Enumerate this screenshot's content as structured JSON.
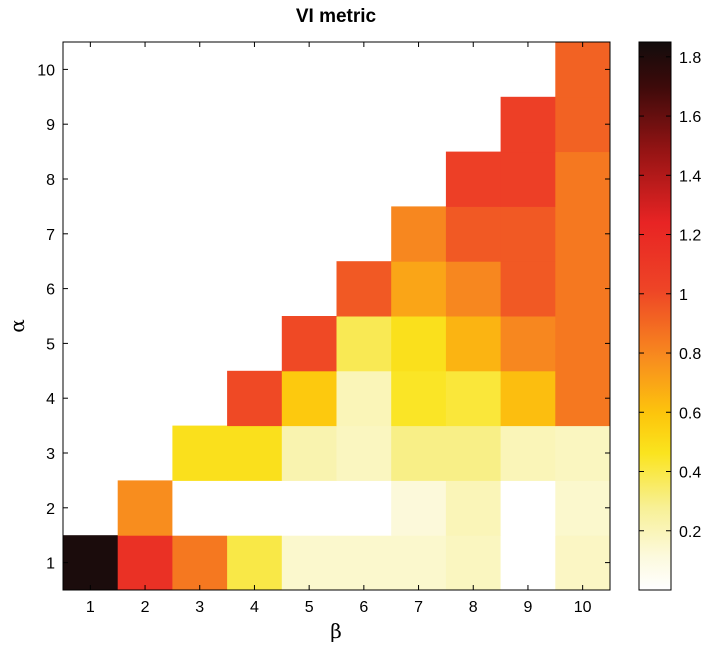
{
  "chart_data": {
    "type": "heatmap",
    "title": "VI metric",
    "xlabel": "β",
    "ylabel": "α",
    "x": [
      1,
      2,
      3,
      4,
      5,
      6,
      7,
      8,
      9,
      10
    ],
    "y": [
      1,
      2,
      3,
      4,
      5,
      6,
      7,
      8,
      9,
      10
    ],
    "x_tick_labels": [
      "1",
      "2",
      "3",
      "4",
      "5",
      "6",
      "7",
      "8",
      "9",
      "10"
    ],
    "y_tick_labels": [
      "1",
      "2",
      "3",
      "4",
      "5",
      "6",
      "7",
      "8",
      "9",
      "10"
    ],
    "values": [
      [
        1.82,
        1.15,
        0.85,
        0.4,
        0.15,
        0.15,
        0.15,
        0.18,
        0.0,
        0.17
      ],
      [
        null,
        0.78,
        0.0,
        0.0,
        0.0,
        0.0,
        0.12,
        0.2,
        0.0,
        0.15
      ],
      [
        null,
        null,
        0.48,
        0.48,
        0.22,
        0.18,
        0.3,
        0.3,
        0.2,
        0.18
      ],
      [
        null,
        null,
        null,
        1.0,
        0.58,
        0.2,
        0.45,
        0.42,
        0.62,
        0.85
      ],
      [
        null,
        null,
        null,
        null,
        1.0,
        0.38,
        0.48,
        0.65,
        0.8,
        0.85
      ],
      [
        null,
        null,
        null,
        null,
        null,
        0.95,
        0.7,
        0.8,
        0.95,
        0.85
      ],
      [
        null,
        null,
        null,
        null,
        null,
        null,
        0.8,
        0.95,
        0.95,
        0.85
      ],
      [
        null,
        null,
        null,
        null,
        null,
        null,
        null,
        1.05,
        1.05,
        0.85
      ],
      [
        null,
        null,
        null,
        null,
        null,
        null,
        null,
        null,
        1.05,
        0.92
      ],
      [
        null,
        null,
        null,
        null,
        null,
        null,
        null,
        null,
        null,
        0.92
      ]
    ],
    "colorbar": {
      "min": 0.0,
      "max": 1.85,
      "ticks": [
        0.2,
        0.4,
        0.6,
        0.8,
        1,
        1.2,
        1.4,
        1.6,
        1.8
      ],
      "tick_labels": [
        "0.2",
        "0.4",
        "0.6",
        "0.8",
        "1",
        "1.2",
        "1.4",
        "1.6",
        "1.8"
      ],
      "colormap": "hot-reversed"
    }
  }
}
